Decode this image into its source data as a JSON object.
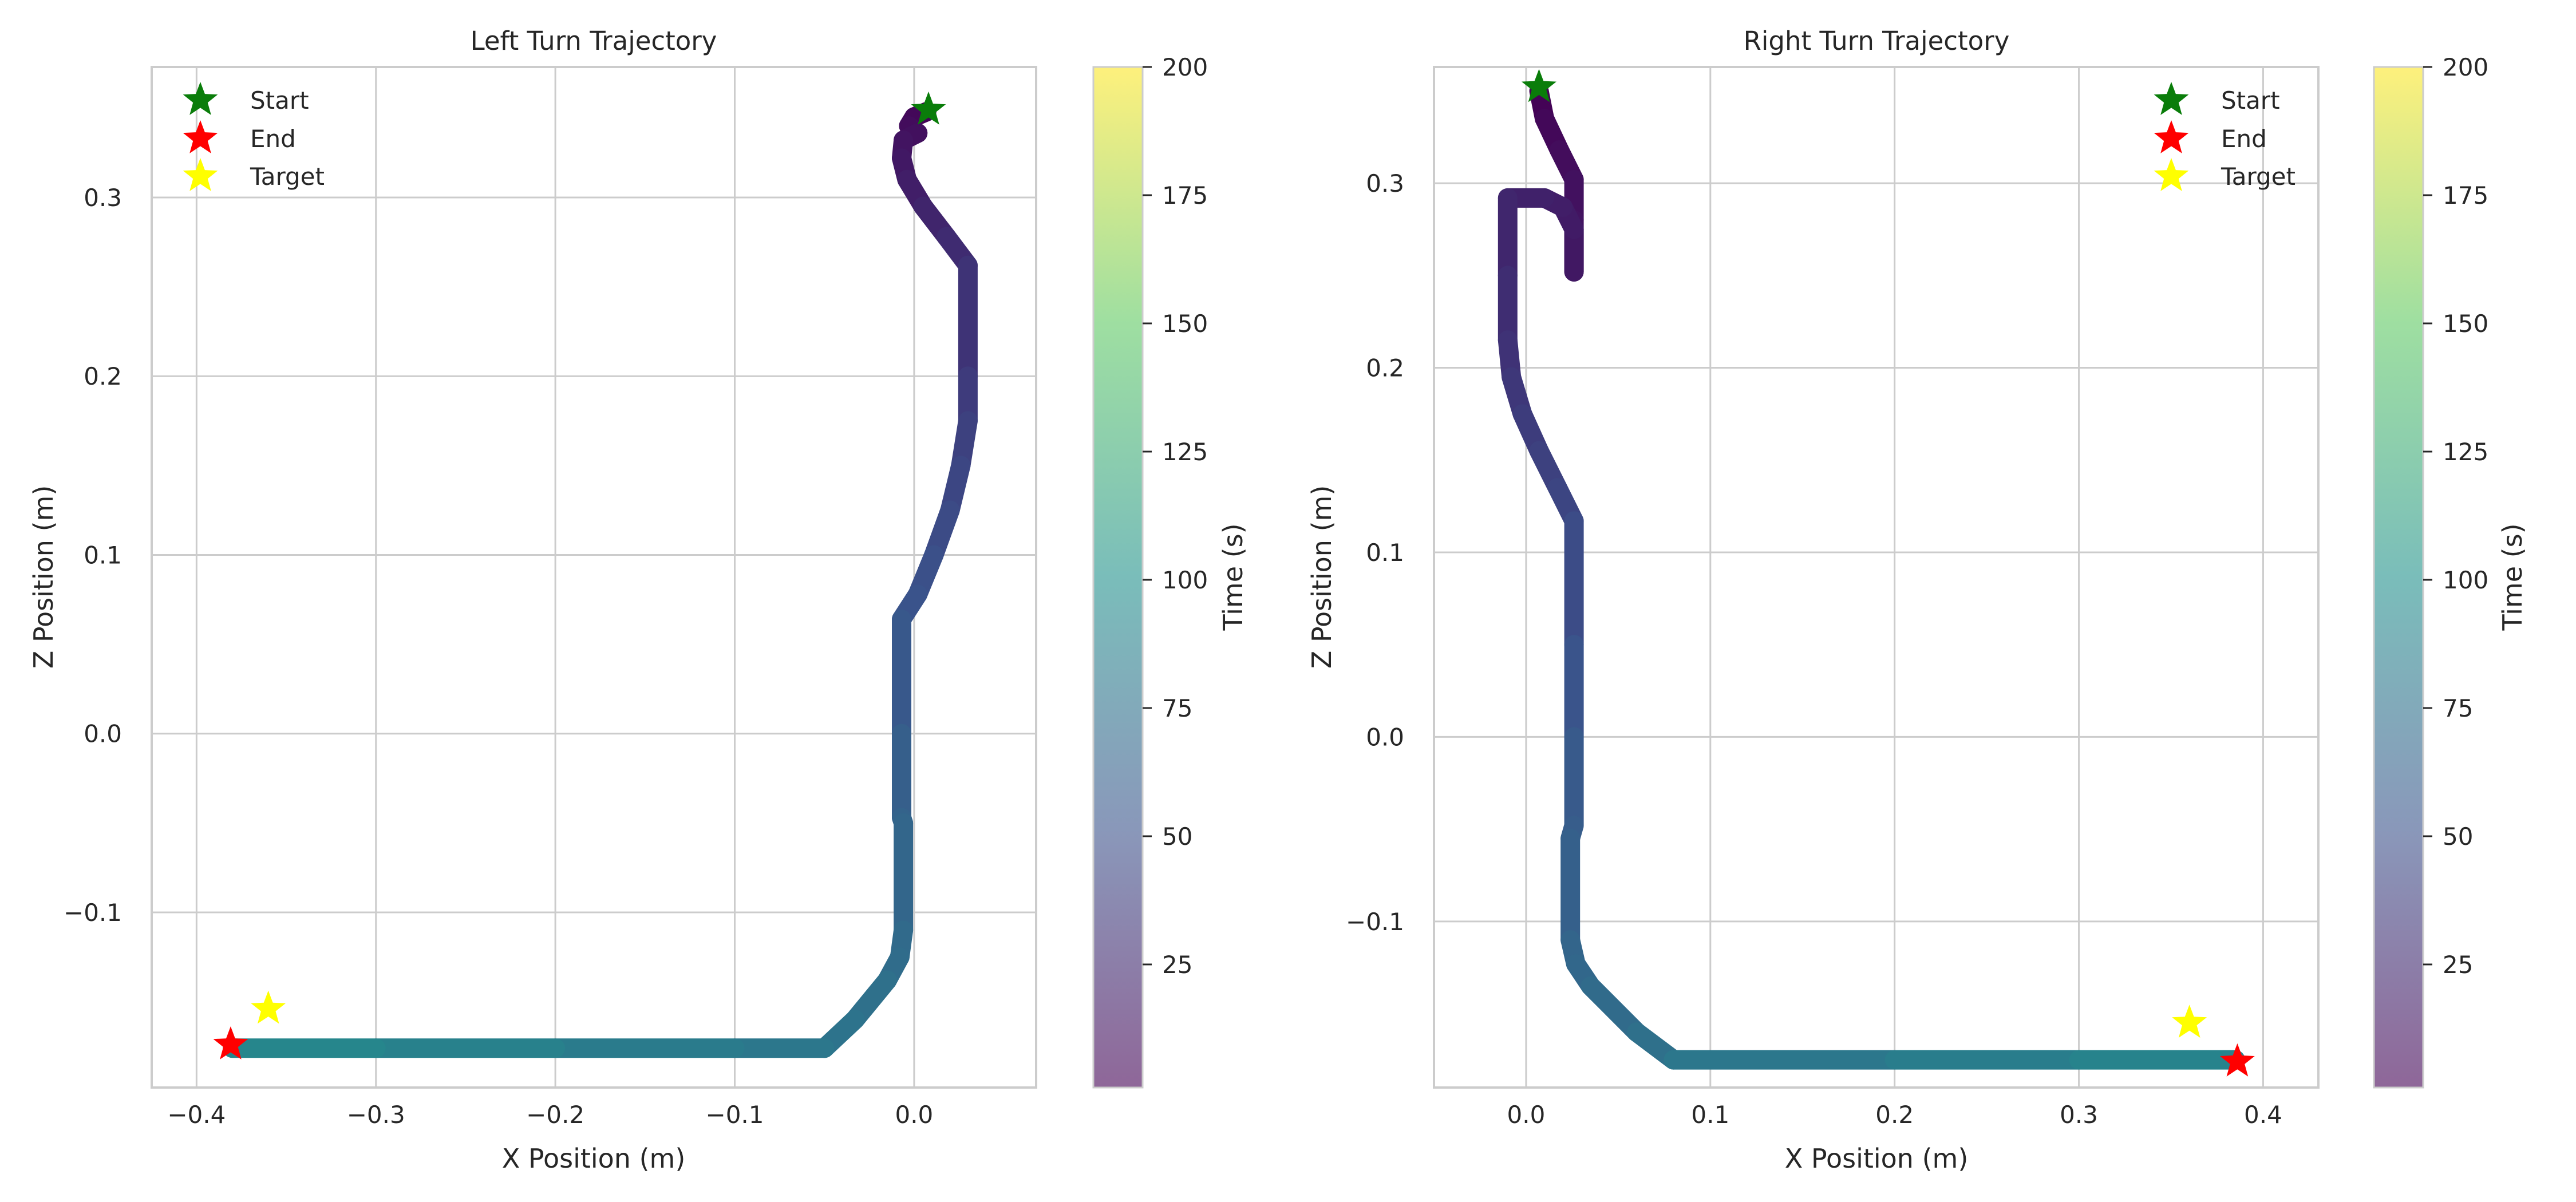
{
  "colors": {
    "start": "#0a7d0a",
    "end": "#ff0000",
    "target": "#ffff00",
    "grid": "#cccccc",
    "colormap": [
      "#440154",
      "#3b528b",
      "#21918c",
      "#5ec962",
      "#fde725"
    ],
    "colorbar_alpha": 0.6
  },
  "chart_data": [
    {
      "type": "line",
      "title": "Left Turn Trajectory",
      "xlabel": "X Position (m)",
      "ylabel": "Z Position (m)",
      "xlim": [
        -0.425,
        0.068
      ],
      "ylim": [
        -0.198,
        0.373
      ],
      "xticks": [
        -0.4,
        -0.3,
        -0.2,
        -0.1,
        0.0
      ],
      "xtick_labels": [
        "−0.4",
        "−0.3",
        "−0.2",
        "−0.1",
        "0.0"
      ],
      "yticks": [
        -0.1,
        0.0,
        0.1,
        0.2,
        0.3
      ],
      "ytick_labels": [
        "−0.1",
        "0.0",
        "0.1",
        "0.2",
        "0.3"
      ],
      "grid": true,
      "legend_location": "top-left",
      "legend": [
        "Start",
        "End",
        "Target"
      ],
      "trajectory": [
        [
          0.007,
          0.348,
          0
        ],
        [
          0.0,
          0.345,
          3
        ],
        [
          -0.003,
          0.34,
          6
        ],
        [
          0.002,
          0.336,
          8
        ],
        [
          -0.006,
          0.332,
          10
        ],
        [
          -0.007,
          0.322,
          13
        ],
        [
          -0.004,
          0.31,
          16
        ],
        [
          0.005,
          0.295,
          20
        ],
        [
          0.018,
          0.278,
          24
        ],
        [
          0.03,
          0.262,
          28
        ],
        [
          0.03,
          0.2,
          34
        ],
        [
          0.03,
          0.175,
          38
        ],
        [
          0.026,
          0.15,
          41
        ],
        [
          0.02,
          0.125,
          44
        ],
        [
          0.011,
          0.1,
          47
        ],
        [
          0.002,
          0.078,
          50
        ],
        [
          -0.007,
          0.064,
          52
        ],
        [
          -0.007,
          0.0,
          58
        ],
        [
          -0.007,
          -0.047,
          63
        ],
        [
          -0.006,
          -0.05,
          64
        ],
        [
          -0.006,
          -0.11,
          68
        ],
        [
          -0.008,
          -0.125,
          70
        ],
        [
          -0.015,
          -0.138,
          72
        ],
        [
          -0.033,
          -0.16,
          75
        ],
        [
          -0.05,
          -0.176,
          78
        ],
        [
          -0.1,
          -0.176,
          80
        ],
        [
          -0.2,
          -0.176,
          85
        ],
        [
          -0.3,
          -0.176,
          90
        ],
        [
          -0.38,
          -0.176,
          92
        ]
      ],
      "start": [
        0.008,
        0.349
      ],
      "end": [
        -0.381,
        -0.174
      ],
      "target": [
        -0.36,
        -0.154
      ],
      "colorbar": {
        "label": "Time (s)",
        "range": [
          1,
          200
        ],
        "ticks": [
          25,
          50,
          75,
          100,
          125,
          150,
          175,
          200
        ],
        "tick_labels": [
          "25",
          "50",
          "75",
          "100",
          "125",
          "150",
          "175",
          "200"
        ]
      }
    },
    {
      "type": "line",
      "title": "Right Turn Trajectory",
      "xlabel": "X Position (m)",
      "ylabel": "Z Position (m)",
      "xlim": [
        -0.05,
        0.43
      ],
      "ylim": [
        -0.19,
        0.363
      ],
      "xticks": [
        0.0,
        0.1,
        0.2,
        0.3,
        0.4
      ],
      "xtick_labels": [
        "0.0",
        "0.1",
        "0.2",
        "0.3",
        "0.4"
      ],
      "yticks": [
        -0.1,
        0.0,
        0.1,
        0.2,
        0.3
      ],
      "ytick_labels": [
        "−0.1",
        "0.0",
        "0.1",
        "0.2",
        "0.3"
      ],
      "grid": true,
      "legend_location": "top-right",
      "legend": [
        "Start",
        "End",
        "Target"
      ],
      "trajectory": [
        [
          0.007,
          0.35,
          0
        ],
        [
          0.01,
          0.335,
          3
        ],
        [
          0.018,
          0.318,
          6
        ],
        [
          0.026,
          0.302,
          9
        ],
        [
          0.026,
          0.28,
          11
        ],
        [
          0.026,
          0.252,
          13
        ],
        [
          0.026,
          0.275,
          15
        ],
        [
          0.02,
          0.287,
          17
        ],
        [
          0.01,
          0.292,
          19
        ],
        [
          -0.01,
          0.292,
          21
        ],
        [
          -0.01,
          0.25,
          25
        ],
        [
          -0.01,
          0.215,
          29
        ],
        [
          -0.008,
          0.195,
          32
        ],
        [
          -0.002,
          0.175,
          35
        ],
        [
          0.007,
          0.155,
          38
        ],
        [
          0.017,
          0.135,
          41
        ],
        [
          0.026,
          0.117,
          43
        ],
        [
          0.026,
          0.05,
          49
        ],
        [
          0.026,
          0.0,
          54
        ],
        [
          0.026,
          -0.048,
          58
        ],
        [
          0.024,
          -0.055,
          59
        ],
        [
          0.024,
          -0.11,
          64
        ],
        [
          0.027,
          -0.123,
          66
        ],
        [
          0.035,
          -0.135,
          68
        ],
        [
          0.06,
          -0.16,
          72
        ],
        [
          0.08,
          -0.175,
          76
        ],
        [
          0.2,
          -0.175,
          82
        ],
        [
          0.3,
          -0.175,
          87
        ],
        [
          0.385,
          -0.175,
          90
        ]
      ],
      "start": [
        0.007,
        0.352
      ],
      "end": [
        0.386,
        -0.176
      ],
      "target": [
        0.36,
        -0.155
      ],
      "colorbar": {
        "label": "Time (s)",
        "range": [
          1,
          200
        ],
        "ticks": [
          25,
          50,
          75,
          100,
          125,
          150,
          175,
          200
        ],
        "tick_labels": [
          "25",
          "50",
          "75",
          "100",
          "125",
          "150",
          "175",
          "200"
        ]
      }
    }
  ]
}
